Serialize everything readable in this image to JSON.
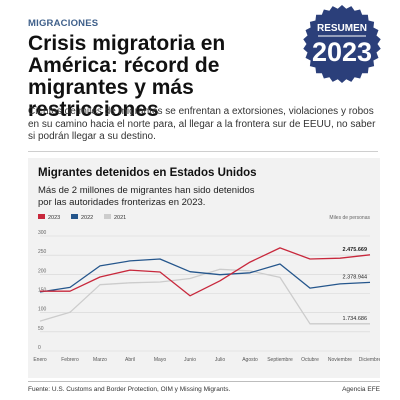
{
  "header": {
    "kicker": "MIGRACIONES",
    "headline": "Crisis migratoria en América: récord de migrantes y más restricciones",
    "intro": "Cientos de miles de migrantes se enfrentan a extorsiones, violaciones y robos en su camino hacia el norte para, al llegar a la frontera sur de EEUU, no saber si podrán llegar a su destino."
  },
  "seal": {
    "top": "RESUMEN",
    "year": "2023",
    "colors": {
      "fill": "#2b3f7a",
      "text": "#ffffff"
    }
  },
  "chart_data": {
    "type": "line",
    "title": "Migrantes detenidos en Estados Unidos",
    "subtitle": "Más de 2 millones de migrantes han sido detenidos por las autoridades fronterizas en 2023.",
    "unit": "Miles de personas",
    "categories": [
      "Enero",
      "Febrero",
      "Marzo",
      "Abril",
      "Mayo",
      "Junio",
      "Julio",
      "Agosto",
      "Septiembre",
      "Octubre",
      "Noviembre",
      "Diciembre"
    ],
    "y_ticks": [
      0,
      50,
      100,
      150,
      200,
      250,
      300
    ],
    "ylim": [
      0,
      300
    ],
    "grid": true,
    "legend_position": "top-left",
    "series": [
      {
        "name": "2023",
        "color": "#c8283c",
        "values": [
          156,
          156,
          193,
          211,
          206,
          144,
          183,
          232,
          269,
          240,
          242,
          251
        ]
      },
      {
        "name": "2022",
        "color": "#25568c",
        "values": [
          154,
          166,
          222,
          235,
          240,
          207,
          199,
          204,
          227,
          164,
          175,
          179
        ]
      },
      {
        "name": "2021",
        "color": "#cccccc",
        "values": [
          78,
          101,
          173,
          178,
          180,
          189,
          213,
          209,
          192,
          71,
          71,
          71
        ]
      }
    ],
    "annotations": [
      {
        "series": "2023",
        "text": "2.475.669"
      },
      {
        "series": "2022",
        "text": "2.378.944"
      },
      {
        "series": "2021",
        "text": "1.734.686"
      }
    ]
  },
  "footer": {
    "source": "Fuente: U.S. Customs and Border Protection, OIM y Missing Migrants.",
    "credit": "Agencia EFE"
  }
}
